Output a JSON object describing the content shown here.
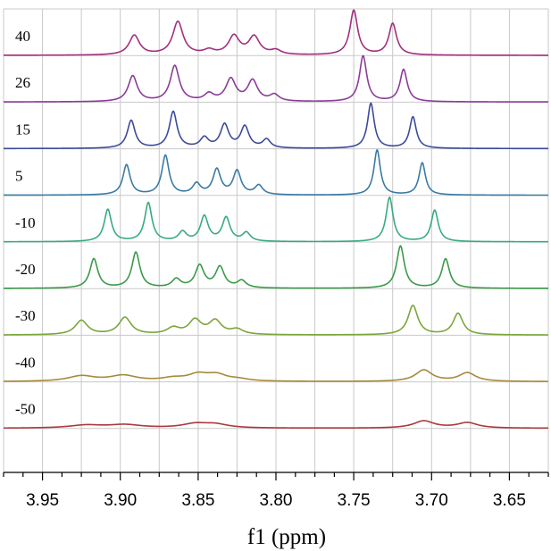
{
  "chart_data": {
    "type": "line",
    "title": "",
    "xlabel": "f1 (ppm)",
    "ylabel": "",
    "x_reversed": true,
    "xlim": [
      3.975,
      3.625
    ],
    "xticks": [
      "3.95",
      "3.90",
      "3.85",
      "3.80",
      "3.75",
      "3.70",
      "3.65"
    ],
    "xtick_values": [
      3.95,
      3.9,
      3.85,
      3.8,
      3.75,
      3.7,
      3.65
    ],
    "grid": true,
    "legend": "none",
    "series": [
      {
        "name": "40",
        "color": "#a0307c",
        "peaks": [
          [
            3.891,
            0.55,
            0.004
          ],
          [
            3.863,
            0.93,
            0.004
          ],
          [
            3.843,
            0.12,
            0.004
          ],
          [
            3.827,
            0.52,
            0.0042
          ],
          [
            3.814,
            0.5,
            0.0042
          ],
          [
            3.8,
            0.12,
            0.004
          ],
          [
            3.75,
            1.25,
            0.003
          ],
          [
            3.725,
            0.88,
            0.003
          ]
        ]
      },
      {
        "name": "26",
        "color": "#8a3c98",
        "peaks": [
          [
            3.892,
            0.72,
            0.0035
          ],
          [
            3.865,
            1.0,
            0.0035
          ],
          [
            3.843,
            0.2,
            0.0036
          ],
          [
            3.829,
            0.62,
            0.0038
          ],
          [
            3.815,
            0.58,
            0.0038
          ],
          [
            3.801,
            0.18,
            0.0036
          ],
          [
            3.744,
            1.28,
            0.0028
          ],
          [
            3.718,
            0.9,
            0.0028
          ]
        ]
      },
      {
        "name": "15",
        "color": "#3c4a9a",
        "peaks": [
          [
            3.893,
            0.78,
            0.003
          ],
          [
            3.866,
            1.02,
            0.003
          ],
          [
            3.846,
            0.28,
            0.0032
          ],
          [
            3.833,
            0.65,
            0.0032
          ],
          [
            3.82,
            0.6,
            0.0032
          ],
          [
            3.806,
            0.24,
            0.003
          ],
          [
            3.739,
            1.26,
            0.0026
          ],
          [
            3.712,
            0.88,
            0.0026
          ]
        ]
      },
      {
        "name": "5",
        "color": "#3a7aa4",
        "peaks": [
          [
            3.896,
            0.84,
            0.0028
          ],
          [
            3.871,
            1.1,
            0.0028
          ],
          [
            3.851,
            0.3,
            0.003
          ],
          [
            3.838,
            0.7,
            0.003
          ],
          [
            3.825,
            0.66,
            0.003
          ],
          [
            3.811,
            0.26,
            0.003
          ],
          [
            3.735,
            1.26,
            0.0025
          ],
          [
            3.706,
            0.9,
            0.0025
          ]
        ]
      },
      {
        "name": "-10",
        "color": "#3aaa80",
        "peaks": [
          [
            3.908,
            0.9,
            0.0028
          ],
          [
            3.882,
            1.08,
            0.0028
          ],
          [
            3.86,
            0.26,
            0.003
          ],
          [
            3.846,
            0.7,
            0.003
          ],
          [
            3.832,
            0.66,
            0.003
          ],
          [
            3.819,
            0.24,
            0.003
          ],
          [
            3.727,
            1.24,
            0.0027
          ],
          [
            3.698,
            0.88,
            0.0027
          ]
        ]
      },
      {
        "name": "-20",
        "color": "#3a9a48",
        "peaks": [
          [
            3.917,
            0.82,
            0.0031
          ],
          [
            3.89,
            1.0,
            0.0031
          ],
          [
            3.864,
            0.24,
            0.0034
          ],
          [
            3.849,
            0.62,
            0.0034
          ],
          [
            3.836,
            0.58,
            0.0034
          ],
          [
            3.822,
            0.2,
            0.0034
          ],
          [
            3.72,
            1.18,
            0.003
          ],
          [
            3.691,
            0.82,
            0.003
          ]
        ]
      },
      {
        "name": "-30",
        "color": "#7aa63a",
        "peaks": [
          [
            3.925,
            0.4,
            0.0048
          ],
          [
            3.897,
            0.48,
            0.0048
          ],
          [
            3.866,
            0.18,
            0.0048
          ],
          [
            3.852,
            0.4,
            0.0048
          ],
          [
            3.839,
            0.38,
            0.0048
          ],
          [
            3.825,
            0.14,
            0.0048
          ],
          [
            3.712,
            0.82,
            0.0038
          ],
          [
            3.683,
            0.6,
            0.0038
          ]
        ]
      },
      {
        "name": "-40",
        "color": "#a68a3a",
        "peaks": [
          [
            3.925,
            0.15,
            0.0105
          ],
          [
            3.898,
            0.16,
            0.0105
          ],
          [
            3.866,
            0.08,
            0.009
          ],
          [
            3.85,
            0.18,
            0.008
          ],
          [
            3.838,
            0.17,
            0.008
          ],
          [
            3.824,
            0.05,
            0.008
          ],
          [
            3.705,
            0.32,
            0.0065
          ],
          [
            3.677,
            0.24,
            0.0065
          ]
        ]
      },
      {
        "name": "-50",
        "color": "#a83a40",
        "peaks": [
          [
            3.922,
            0.08,
            0.013
          ],
          [
            3.897,
            0.09,
            0.013
          ],
          [
            3.852,
            0.11,
            0.01
          ],
          [
            3.839,
            0.1,
            0.01
          ],
          [
            3.705,
            0.2,
            0.008
          ],
          [
            3.677,
            0.15,
            0.008
          ]
        ]
      }
    ]
  }
}
